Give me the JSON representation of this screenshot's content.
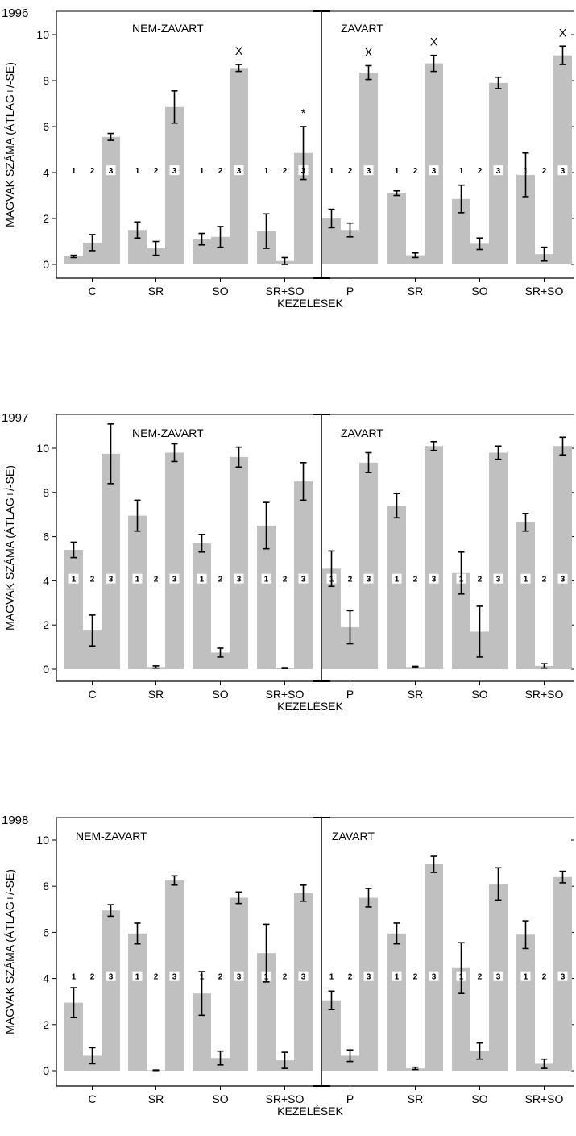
{
  "colors": {
    "bar": "#c0c0c0",
    "axis": "#000000",
    "label_box": "#ffffff",
    "text": "#000000"
  },
  "chart_data": [
    {
      "type": "bar",
      "title": "1996",
      "ylabel": "MAGVAK SZÁMA (ÁTLAG+/-SE)",
      "xlabel": "KEZELÉSEK",
      "ylim": [
        -0.5,
        10.8
      ],
      "yticks": [
        "0",
        "2",
        "4",
        "6",
        "8",
        "10"
      ],
      "grid": false,
      "series_position_labels": [
        "1",
        "2",
        "3"
      ],
      "panels": [
        {
          "label": "NEM-ZAVART",
          "categories": [
            "C",
            "SR",
            "SO",
            "SR+SO"
          ],
          "values": [
            [
              0.35,
              0.95,
              5.55
            ],
            [
              1.5,
              0.7,
              6.85
            ],
            [
              1.1,
              1.2,
              8.55
            ],
            [
              1.45,
              0.15,
              4.85
            ]
          ],
          "errors": [
            [
              0.05,
              0.35,
              0.15
            ],
            [
              0.35,
              0.3,
              0.7
            ],
            [
              0.25,
              0.45,
              0.15
            ],
            [
              0.75,
              0.15,
              1.15
            ]
          ],
          "markers": [
            {
              "category": "SO",
              "bar": 3,
              "text": "X"
            },
            {
              "category": "SR+SO",
              "bar": 3,
              "text": "*"
            }
          ]
        },
        {
          "label": "ZAVART",
          "categories": [
            "P",
            "SR",
            "SO",
            "SR+SO"
          ],
          "values": [
            [
              2.0,
              1.5,
              8.35
            ],
            [
              3.1,
              0.4,
              8.75
            ],
            [
              2.85,
              0.9,
              7.9
            ],
            [
              3.9,
              0.45,
              9.1
            ]
          ],
          "errors": [
            [
              0.4,
              0.3,
              0.3
            ],
            [
              0.1,
              0.1,
              0.35
            ],
            [
              0.6,
              0.25,
              0.25
            ],
            [
              0.95,
              0.3,
              0.4
            ]
          ],
          "markers": [
            {
              "category": "P",
              "bar": 3,
              "text": "X"
            },
            {
              "category": "SR",
              "bar": 3,
              "text": "X"
            },
            {
              "category": "SR+SO",
              "bar": 3,
              "text": "X"
            }
          ]
        }
      ]
    },
    {
      "type": "bar",
      "title": "1997",
      "ylabel": "MAGVAK SZÁMA (ÁTLAG+/-SE)",
      "xlabel": "KEZELÉSEK",
      "ylim": [
        -0.5,
        10.8
      ],
      "yticks": [
        "0",
        "2",
        "4",
        "6",
        "8",
        "10"
      ],
      "grid": false,
      "series_position_labels": [
        "1",
        "2",
        "3"
      ],
      "panels": [
        {
          "label": "NEM-ZAVART",
          "categories": [
            "C",
            "SR",
            "SO",
            "SR+SO"
          ],
          "values": [
            [
              5.4,
              1.75,
              9.75
            ],
            [
              6.95,
              0.1,
              9.8
            ],
            [
              5.7,
              0.75,
              9.6
            ],
            [
              6.5,
              0.05,
              8.5
            ]
          ],
          "errors": [
            [
              0.35,
              0.7,
              1.35
            ],
            [
              0.7,
              0.05,
              0.4
            ],
            [
              0.4,
              0.2,
              0.45
            ],
            [
              1.05,
              0.02,
              0.85
            ]
          ],
          "markers": []
        },
        {
          "label": "ZAVART",
          "categories": [
            "P",
            "SR",
            "SO",
            "SR+SO"
          ],
          "values": [
            [
              4.55,
              1.9,
              9.35
            ],
            [
              7.4,
              0.1,
              10.1
            ],
            [
              4.35,
              1.7,
              9.8
            ],
            [
              6.65,
              0.15,
              10.1
            ]
          ],
          "errors": [
            [
              0.8,
              0.75,
              0.45
            ],
            [
              0.55,
              0.03,
              0.2
            ],
            [
              0.95,
              1.15,
              0.3
            ],
            [
              0.4,
              0.1,
              0.4
            ]
          ],
          "markers": []
        }
      ]
    },
    {
      "type": "bar",
      "title": "1998",
      "ylabel": "MAGVAK SZÁMA (ÁTLAG+/-SE)",
      "xlabel": "KEZELÉSEK",
      "ylim": [
        -0.5,
        10.8
      ],
      "yticks": [
        "0",
        "2",
        "4",
        "6",
        "8",
        "10"
      ],
      "grid": false,
      "series_position_labels": [
        "1",
        "2",
        "3"
      ],
      "panels": [
        {
          "label": "NEM-ZAVART",
          "categories": [
            "C",
            "SR",
            "SO",
            "SR+SO"
          ],
          "values": [
            [
              2.95,
              0.65,
              6.95
            ],
            [
              5.95,
              0.02,
              8.25
            ],
            [
              3.35,
              0.55,
              7.5
            ],
            [
              5.1,
              0.45,
              7.7
            ]
          ],
          "errors": [
            [
              0.65,
              0.35,
              0.25
            ],
            [
              0.45,
              0.01,
              0.2
            ],
            [
              0.95,
              0.3,
              0.25
            ],
            [
              1.25,
              0.35,
              0.35
            ]
          ],
          "markers": []
        },
        {
          "label": "ZAVART",
          "categories": [
            "P",
            "SR",
            "SO",
            "SR+SO"
          ],
          "values": [
            [
              3.05,
              0.65,
              7.5
            ],
            [
              5.95,
              0.1,
              8.95
            ],
            [
              4.45,
              0.85,
              8.1
            ],
            [
              5.9,
              0.3,
              8.4
            ]
          ],
          "errors": [
            [
              0.4,
              0.25,
              0.4
            ],
            [
              0.45,
              0.05,
              0.35
            ],
            [
              1.1,
              0.35,
              0.7
            ],
            [
              0.6,
              0.2,
              0.25
            ]
          ],
          "markers": []
        }
      ]
    }
  ]
}
